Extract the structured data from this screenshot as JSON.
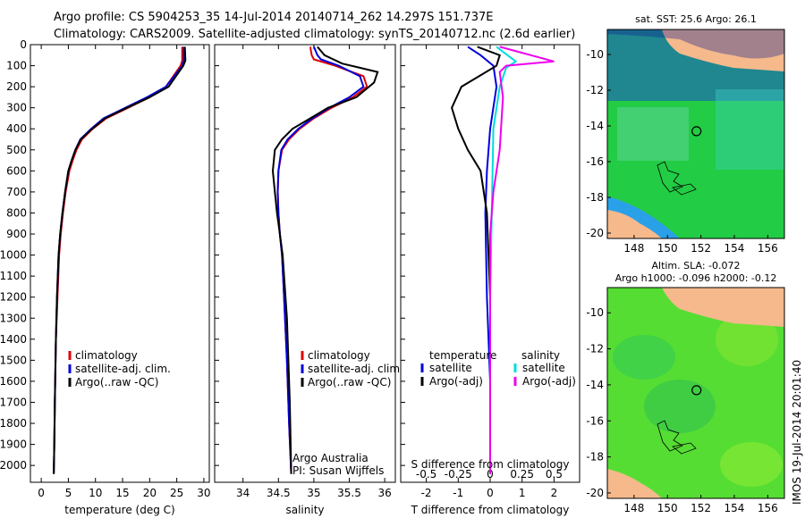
{
  "header": {
    "line1": "Argo profile: CS 5904253_35 14-Jul-2014 20140714_262 14.297S 151.737E",
    "line2": "Climatology: CARS2009. Satellite-adjusted climatology: synTS_20140712.nc (2.6d earlier)"
  },
  "footer": {
    "stamp": "IMOS 19-Jul-2014 20:01:40",
    "credit_line1": "Argo Australia",
    "credit_line2": "PI: Susan Wijffels"
  },
  "colors": {
    "climatology": "#e00000",
    "satellite": "#0000dd",
    "argo": "#000000",
    "salinity_satellite": "#00dddd",
    "salinity_argo": "#ee00ee",
    "land": "#f5b98c",
    "ocean_sst": "#22cc44",
    "ocean_sla": "#55dd33"
  },
  "chart_data": [
    {
      "id": "temperature",
      "type": "line",
      "xlabel": "temperature (deg C)",
      "ylabel": "",
      "xlim": [
        -2,
        31
      ],
      "ylim": [
        2080,
        0
      ],
      "xticks": [
        0,
        5,
        10,
        15,
        20,
        25,
        30
      ],
      "yticks": [
        0,
        100,
        200,
        300,
        400,
        500,
        600,
        700,
        800,
        900,
        1000,
        1100,
        1200,
        1300,
        1400,
        1500,
        1600,
        1700,
        1800,
        1900,
        2000
      ],
      "legend": [
        "climatology",
        "satellite-adj. clim.",
        "Argo(..raw -QC)"
      ],
      "series": [
        {
          "name": "climatology",
          "color": "#e00000",
          "x": [
            26,
            26,
            25.7,
            23,
            20,
            16,
            12,
            9.5,
            7.5,
            6.5,
            5.8,
            5.2,
            4.5,
            4.0,
            3.6,
            3.3,
            3.0,
            2.7,
            2.5,
            2.4,
            2.3
          ],
          "y": [
            10,
            75,
            100,
            200,
            250,
            300,
            350,
            400,
            450,
            500,
            550,
            600,
            700,
            800,
            900,
            1000,
            1200,
            1400,
            1700,
            1900,
            2040
          ]
        },
        {
          "name": "satellite-adj. clim.",
          "color": "#0000dd",
          "x": [
            26.3,
            26.3,
            26,
            23,
            19.5,
            15.5,
            11.5,
            9.2,
            7.2,
            6.3,
            5.6,
            5.0,
            4.4,
            3.9,
            3.5,
            3.2,
            2.9,
            2.7,
            2.5,
            2.4,
            2.3
          ],
          "y": [
            10,
            75,
            100,
            200,
            250,
            300,
            350,
            400,
            450,
            500,
            550,
            600,
            700,
            800,
            900,
            1000,
            1200,
            1400,
            1700,
            1900,
            2040
          ]
        },
        {
          "name": "Argo(..raw -QC)",
          "color": "#000000",
          "x": [
            26.5,
            26.6,
            26.2,
            23.5,
            20,
            15.8,
            11.8,
            9.4,
            7.3,
            6.3,
            5.6,
            5.0,
            4.4,
            3.9,
            3.5,
            3.2,
            2.9,
            2.7,
            2.5,
            2.4,
            2.3
          ],
          "y": [
            10,
            75,
            100,
            200,
            250,
            300,
            350,
            400,
            450,
            500,
            550,
            600,
            700,
            800,
            900,
            1000,
            1200,
            1400,
            1700,
            1900,
            2040
          ]
        }
      ]
    },
    {
      "id": "salinity",
      "type": "line",
      "xlabel": "salinity",
      "ylabel": "",
      "xlim": [
        33.6,
        36.15
      ],
      "ylim": [
        2080,
        0
      ],
      "xticks": [
        34,
        34.5,
        35,
        35.5,
        36
      ],
      "legend": [
        "climatology",
        "satellite-adj. clim.",
        "Argo(..raw -QC)"
      ],
      "series": [
        {
          "name": "climatology",
          "color": "#e00000",
          "x": [
            34.95,
            34.97,
            35.0,
            35.3,
            35.7,
            35.75,
            35.55,
            35.25,
            35.0,
            34.8,
            34.65,
            34.55,
            34.5,
            34.49,
            34.5,
            34.52,
            34.55,
            34.58,
            34.62,
            34.65,
            34.68
          ],
          "y": [
            10,
            50,
            70,
            100,
            150,
            200,
            250,
            300,
            350,
            400,
            450,
            500,
            600,
            700,
            800,
            900,
            1000,
            1200,
            1500,
            1800,
            2040
          ]
        },
        {
          "name": "satellite-adj. clim.",
          "color": "#0000dd",
          "x": [
            35.0,
            35.05,
            35.1,
            35.35,
            35.65,
            35.7,
            35.5,
            35.22,
            34.98,
            34.78,
            34.63,
            34.54,
            34.5,
            34.49,
            34.5,
            34.52,
            34.55,
            34.58,
            34.62,
            34.65,
            34.68
          ],
          "y": [
            10,
            50,
            70,
            100,
            150,
            200,
            250,
            300,
            350,
            400,
            450,
            500,
            600,
            700,
            800,
            900,
            1000,
            1200,
            1500,
            1800,
            2040
          ]
        },
        {
          "name": "Argo(..raw -QC)",
          "color": "#000000",
          "x": [
            35.05,
            35.15,
            35.4,
            35.65,
            35.9,
            35.85,
            35.6,
            35.2,
            34.95,
            34.7,
            34.55,
            34.45,
            34.42,
            34.45,
            34.48,
            34.52,
            34.56,
            34.62,
            34.66,
            34.68
          ],
          "y": [
            10,
            50,
            90,
            110,
            130,
            180,
            250,
            300,
            350,
            400,
            450,
            500,
            600,
            700,
            800,
            900,
            1000,
            1300,
            1700,
            2040
          ]
        }
      ]
    },
    {
      "id": "difference",
      "type": "line",
      "xlabel": "T difference from climatology",
      "top_label": "S difference from climatology",
      "xlim": [
        -2.8,
        2.8
      ],
      "ylim": [
        2080,
        0
      ],
      "xticks": [
        -2,
        -1,
        0,
        1,
        2
      ],
      "top_tick_labels": [
        "-0.5",
        "-0.25",
        "0",
        "0.25",
        "0.5"
      ],
      "top_tick_x": [
        -2,
        -1,
        0,
        1,
        2
      ],
      "legend_headers": [
        "temperature",
        "salinity"
      ],
      "legend": [
        "satellite",
        "Argo(-adj)",
        "satellite",
        "Argo(-adj)"
      ],
      "series": [
        {
          "name": "temperature satellite",
          "color": "#0000dd",
          "x": [
            -0.7,
            -0.3,
            0.1,
            0.2,
            0.0,
            -0.1,
            -0.15,
            -0.1,
            0.0,
            0.0
          ],
          "y": [
            10,
            50,
            100,
            200,
            400,
            600,
            800,
            1200,
            1600,
            2040
          ]
        },
        {
          "name": "temperature Argo(-adj)",
          "color": "#000000",
          "x": [
            -0.4,
            0.3,
            0.2,
            -0.9,
            -1.2,
            -1.0,
            -0.7,
            -0.3,
            -0.1,
            0.0,
            0.0
          ],
          "y": [
            10,
            50,
            100,
            200,
            300,
            400,
            500,
            600,
            800,
            1200,
            2040
          ]
        },
        {
          "name": "salinity satellite",
          "color": "#00dddd",
          "x": [
            0.2,
            0.8,
            0.5,
            0.3,
            0.1,
            0.05,
            0.0,
            0.0
          ],
          "y": [
            10,
            80,
            110,
            200,
            400,
            800,
            1200,
            2040
          ]
        },
        {
          "name": "salinity Argo(-adj)",
          "color": "#ee00ee",
          "x": [
            0.3,
            2.0,
            0.5,
            0.3,
            0.4,
            0.3,
            0.1,
            0.0,
            0.0,
            0.0
          ],
          "y": [
            10,
            80,
            100,
            130,
            250,
            500,
            700,
            900,
            1200,
            2040
          ]
        }
      ]
    },
    {
      "id": "sst_map",
      "type": "heatmap",
      "title": "sat. SST: 25.6  Argo: 26.1",
      "xlim": [
        146.4,
        157.0
      ],
      "ylim": [
        -20.3,
        -8.6
      ],
      "xticks": [
        148,
        150,
        152,
        154,
        156
      ],
      "yticks": [
        -10,
        -12,
        -14,
        -16,
        -18,
        -20
      ],
      "argo_position": [
        151.737,
        -14.297
      ]
    },
    {
      "id": "sla_map",
      "type": "heatmap",
      "title_line1": "Altim. SLA: -0.072",
      "title_line2": "Argo h1000: -0.096 h2000: -0.12",
      "xlim": [
        146.4,
        157.0
      ],
      "ylim": [
        -20.3,
        -8.6
      ],
      "xticks": [
        148,
        150,
        152,
        154,
        156
      ],
      "yticks": [
        -10,
        -12,
        -14,
        -16,
        -18,
        -20
      ],
      "argo_position": [
        151.737,
        -14.297
      ]
    }
  ]
}
